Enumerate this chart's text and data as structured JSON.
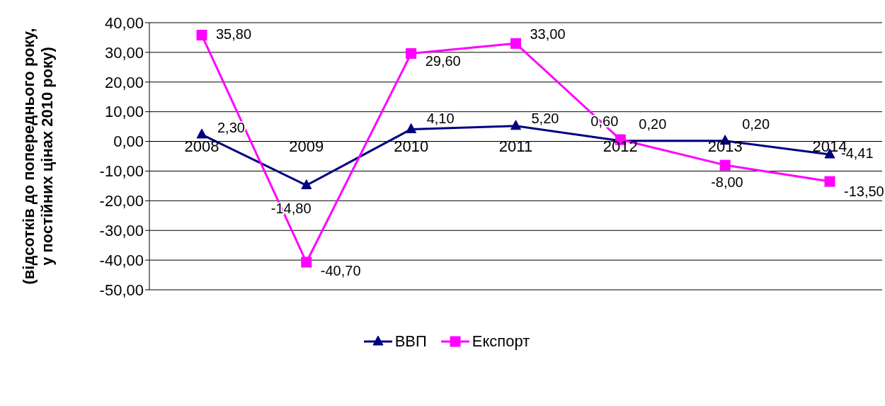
{
  "chart_data": {
    "type": "line",
    "ylabel": "(відсотків до попереднього року,\nу постійних цінах 2010 року)",
    "categories": [
      "2008",
      "2009",
      "2010",
      "2011",
      "2012",
      "2013",
      "2014"
    ],
    "series": [
      {
        "name": "ВВП",
        "color": "#000080",
        "marker": "triangle",
        "values": [
          2.3,
          -14.8,
          4.1,
          5.2,
          0.2,
          0.2,
          -4.41
        ],
        "value_labels": [
          "2,30",
          "-14,80",
          "4,10",
          "5,20",
          "0,20",
          "0,20",
          "-4,41"
        ]
      },
      {
        "name": "Експорт",
        "color": "#ff00ff",
        "marker": "square",
        "values": [
          35.8,
          -40.7,
          29.6,
          33.0,
          0.6,
          -8.0,
          -13.5
        ],
        "value_labels": [
          "35,80",
          "-40,70",
          "29,60",
          "33,00",
          "0,60",
          "-8,00",
          "-13,50"
        ]
      }
    ],
    "ylim": [
      -50,
      40
    ],
    "yticks": [
      {
        "value": -50,
        "label": "-50,00"
      },
      {
        "value": -40,
        "label": "-40,00"
      },
      {
        "value": -30,
        "label": "-30,00"
      },
      {
        "value": -20,
        "label": "-20,00"
      },
      {
        "value": -10,
        "label": "-10,00"
      },
      {
        "value": 0,
        "label": "0,00"
      },
      {
        "value": 10,
        "label": "10,00"
      },
      {
        "value": 20,
        "label": "20,00"
      },
      {
        "value": 30,
        "label": "30,00"
      },
      {
        "value": 40,
        "label": "40,00"
      }
    ],
    "grid": "y",
    "legend": "bottom"
  }
}
